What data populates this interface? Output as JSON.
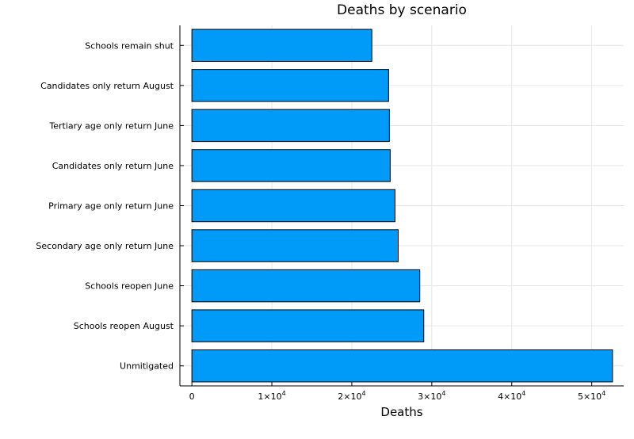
{
  "chart_data": {
    "type": "bar",
    "orientation": "horizontal",
    "title": "Deaths by scenario",
    "xlabel": "Deaths",
    "ylabel": "",
    "xlim": [
      -1500,
      54000
    ],
    "xticks": [
      {
        "value": 0,
        "base": "0",
        "exp": ""
      },
      {
        "value": 10000,
        "base": "1×10",
        "exp": "4"
      },
      {
        "value": 20000,
        "base": "2×10",
        "exp": "4"
      },
      {
        "value": 30000,
        "base": "3×10",
        "exp": "4"
      },
      {
        "value": 40000,
        "base": "4×10",
        "exp": "4"
      },
      {
        "value": 50000,
        "base": "5×10",
        "exp": "4"
      }
    ],
    "categories": [
      "Schools remain shut",
      "Candidates only return August",
      "Tertiary age only return June",
      "Candidates only return June",
      "Primary age only return June",
      "Secondary age only return June",
      "Schools reopen June",
      "Schools reopen August",
      "Unmitigated"
    ],
    "values": [
      22500,
      24600,
      24700,
      24800,
      25400,
      25800,
      28500,
      29000,
      52600
    ],
    "bar_color": "#009af9",
    "grid": true,
    "legend": "none"
  }
}
